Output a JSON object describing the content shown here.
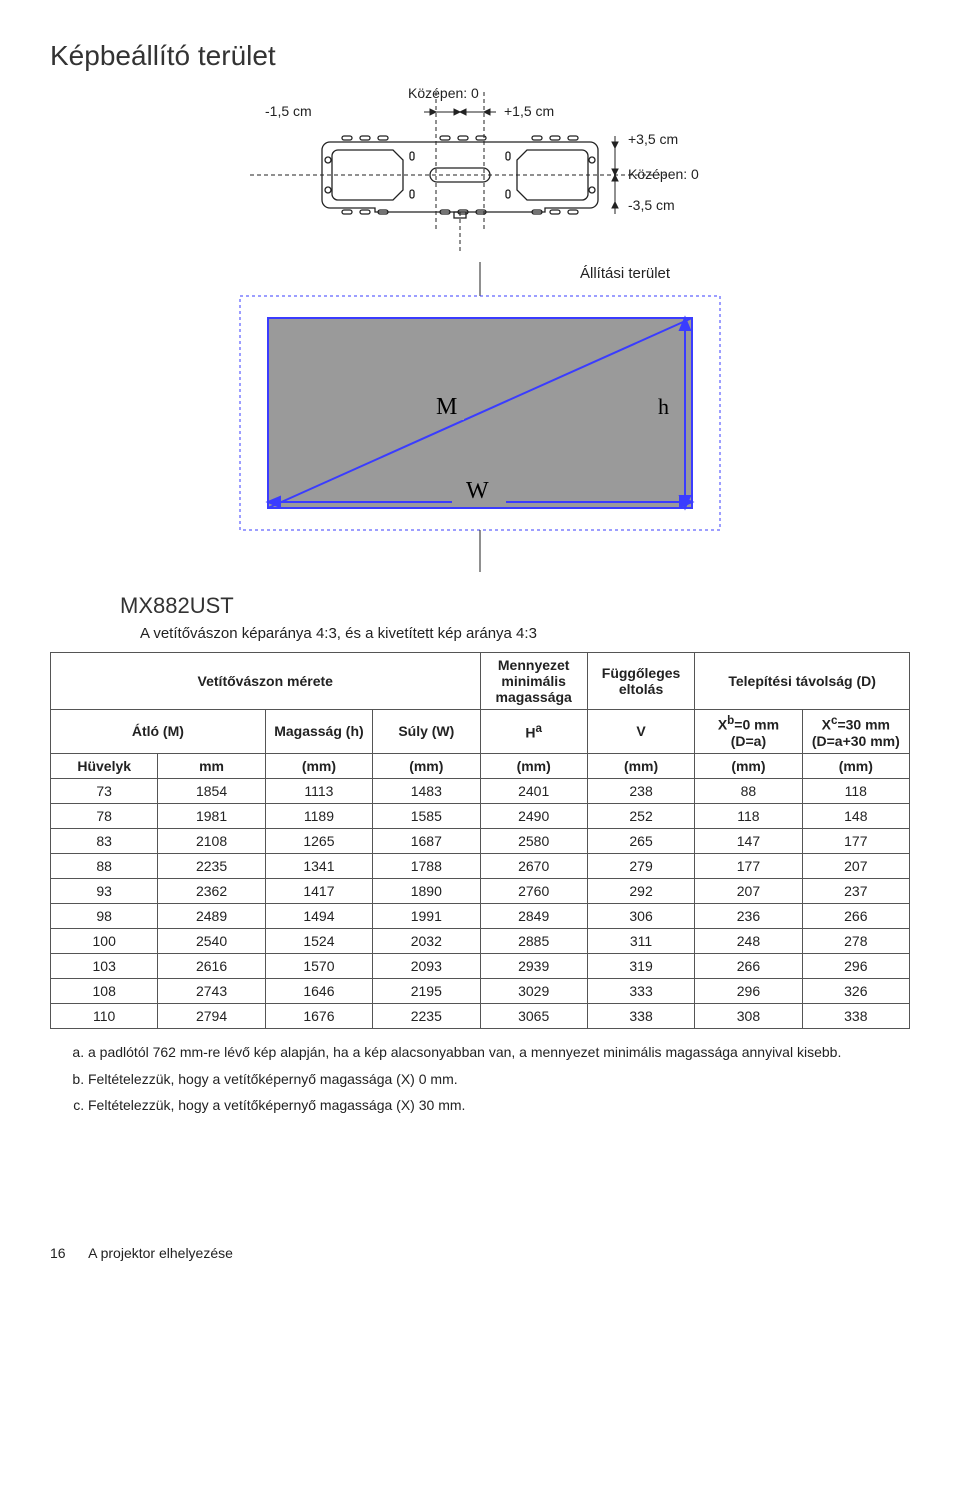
{
  "page_title": "Képbeállító terület",
  "bracket": {
    "left": "-1,5 cm",
    "center_top": "Középen: 0",
    "right": "+1,5 cm",
    "right_top": "+3,5 cm",
    "right_center": "Középen: 0",
    "right_bottom": "-3,5 cm"
  },
  "screen": {
    "caption": "Állítási terület",
    "M": "M",
    "h": "h",
    "W": "W",
    "fill": "#9a9a9a",
    "stroke": "#3a3cff",
    "dashed": "#3a3cff"
  },
  "model": "MX882UST",
  "subhead": "A vetítővászon képaránya 4:3, és a kivetített kép aránya 4:3",
  "table": {
    "headers1": {
      "screen_size": "Vetítővászon mérete",
      "ceiling": "Mennyezet minimális magassága",
      "vshift": "Függőleges eltolás",
      "install": "Telepítési távolság (D)"
    },
    "headers2": {
      "diag": "Átló (M)",
      "height": "Magasság (h)",
      "weight": "Súly (W)",
      "Ha_html": "H<sup>a</sup>",
      "V": "V",
      "Xb_html": "X<sup>b</sup>=0 mm (D=a)",
      "Xc_html": "X<sup>c</sup>=30 mm (D=a+30 mm)"
    },
    "units": [
      "Hüvelyk",
      "mm",
      "(mm)",
      "(mm)",
      "(mm)",
      "(mm)",
      "(mm)",
      "(mm)"
    ],
    "rows": [
      [
        "73",
        "1854",
        "1113",
        "1483",
        "2401",
        "238",
        "88",
        "118"
      ],
      [
        "78",
        "1981",
        "1189",
        "1585",
        "2490",
        "252",
        "118",
        "148"
      ],
      [
        "83",
        "2108",
        "1265",
        "1687",
        "2580",
        "265",
        "147",
        "177"
      ],
      [
        "88",
        "2235",
        "1341",
        "1788",
        "2670",
        "279",
        "177",
        "207"
      ],
      [
        "93",
        "2362",
        "1417",
        "1890",
        "2760",
        "292",
        "207",
        "237"
      ],
      [
        "98",
        "2489",
        "1494",
        "1991",
        "2849",
        "306",
        "236",
        "266"
      ],
      [
        "100",
        "2540",
        "1524",
        "2032",
        "2885",
        "311",
        "248",
        "278"
      ],
      [
        "103",
        "2616",
        "1570",
        "2093",
        "2939",
        "319",
        "266",
        "296"
      ],
      [
        "108",
        "2743",
        "1646",
        "2195",
        "3029",
        "333",
        "296",
        "326"
      ],
      [
        "110",
        "2794",
        "1676",
        "2235",
        "3065",
        "338",
        "308",
        "338"
      ]
    ]
  },
  "notes": [
    "a padlótól 762 mm-re lévő kép alapján, ha a kép alacsonyabban van, a mennyezet minimális magassága annyival kisebb.",
    "Feltételezzük, hogy a vetítőképernyő magassága (X) 0 mm.",
    "Feltételezzük, hogy a vetítőképernyő magassága (X) 30 mm."
  ],
  "footer": {
    "pagenum": "16",
    "section": "A projektor elhelyezése"
  },
  "colors": {
    "border": "#555",
    "text": "#222"
  }
}
